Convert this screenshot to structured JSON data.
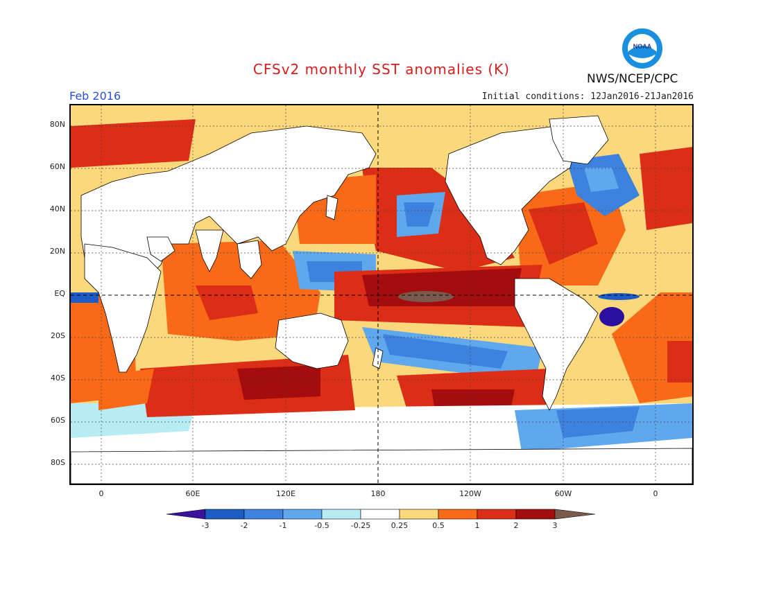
{
  "header": {
    "title": "CFSv2 monthly SST anomalies (K)",
    "month_label": "Feb 2016",
    "initial_conditions": "Initial conditions: 12Jan2016-21Jan2016",
    "org": "NWS/NCEP/CPC",
    "logo_text": "NOAA"
  },
  "map": {
    "lat_labels": [
      "80N",
      "60N",
      "40N",
      "20N",
      "EQ",
      "20S",
      "40S",
      "60S",
      "80S"
    ],
    "lon_labels": [
      "0",
      "60E",
      "120E",
      "180",
      "120W",
      "60W",
      "0"
    ],
    "colors": {
      "strong_warm": "#7a5a4e",
      "very_warm": "#a40d0d",
      "warm": "#dc2d16",
      "moderate_warm": "#f86a18",
      "slight_warm": "#fbd87c",
      "neutral": "#ffffff",
      "slight_cool": "#b7ecf5",
      "cool": "#5fa8ee",
      "moderate_cool": "#3c82de",
      "very_cool": "#1c5cc4",
      "strong_cool": "#2a0fa0",
      "land": "#ffffff"
    }
  },
  "colorbar": {
    "labels": [
      "-3",
      "-2",
      "-1",
      "-0.5",
      "-0.25",
      "0.25",
      "0.5",
      "1",
      "2",
      "3"
    ],
    "colors": [
      "#3b129c",
      "#1c5cc4",
      "#3c82de",
      "#5fa8ee",
      "#b7ecf5",
      "#ffffff",
      "#fbd87c",
      "#f86a18",
      "#dc2d16",
      "#a40d0d",
      "#7a5a4e"
    ]
  }
}
